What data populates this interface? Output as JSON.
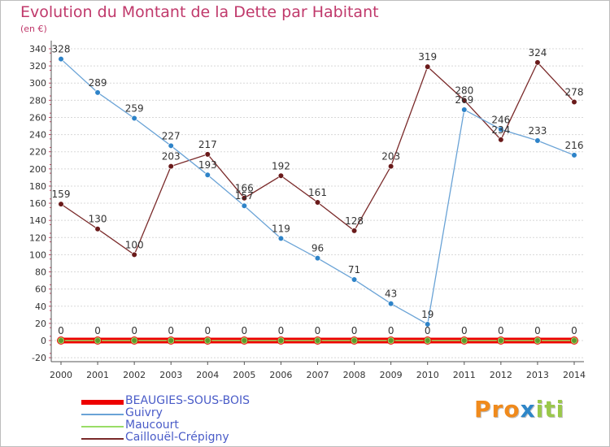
{
  "chart_data": {
    "type": "line",
    "title": "Evolution du Montant de la Dette par Habitant",
    "subtitle": "(en €)",
    "xlabel": "",
    "ylabel": "",
    "ylim": [
      -20,
      340
    ],
    "ytick_step": 20,
    "categories": [
      "2000",
      "2001",
      "2002",
      "2003",
      "2004",
      "2005",
      "2006",
      "2007",
      "2008",
      "2009",
      "2010",
      "2011",
      "2012",
      "2013",
      "2014"
    ],
    "series": [
      {
        "name": "BEAUGIES-SOUS-BOIS",
        "color": "#ee0000",
        "values": [
          0,
          0,
          0,
          0,
          0,
          0,
          0,
          0,
          0,
          0,
          0,
          0,
          0,
          0,
          0
        ]
      },
      {
        "name": "Guivry",
        "color": "#6aa3d6",
        "marker": "#2e83c8",
        "values": [
          328,
          289,
          259,
          227,
          193,
          157,
          119,
          96,
          71,
          43,
          19,
          269,
          246,
          233,
          216
        ]
      },
      {
        "name": "Maucourt",
        "color": "#99dd66",
        "marker": "#5c9a2e",
        "values": [
          0,
          0,
          0,
          0,
          0,
          0,
          0,
          0,
          0,
          0,
          0,
          0,
          0,
          0,
          0
        ]
      },
      {
        "name": "Caillouël-Crépigny",
        "color": "#7a2a2a",
        "marker": "#6a1a1a",
        "values": [
          159,
          130,
          100,
          203,
          217,
          166,
          192,
          161,
          128,
          203,
          319,
          280,
          234,
          324,
          278
        ]
      }
    ],
    "data_labels_shown": true,
    "grid": "horizontal dashed",
    "legend_position": "bottom-left"
  },
  "logo": {
    "text": "Proxiti",
    "letters": [
      "P",
      "r",
      "o",
      "x",
      "i",
      "t",
      "i"
    ],
    "colors": [
      "#f08a1c",
      "#f08a1c",
      "#f08a1c",
      "#2e86c8",
      "#9ac84a",
      "#9ac84a",
      "#9ac84a"
    ]
  }
}
